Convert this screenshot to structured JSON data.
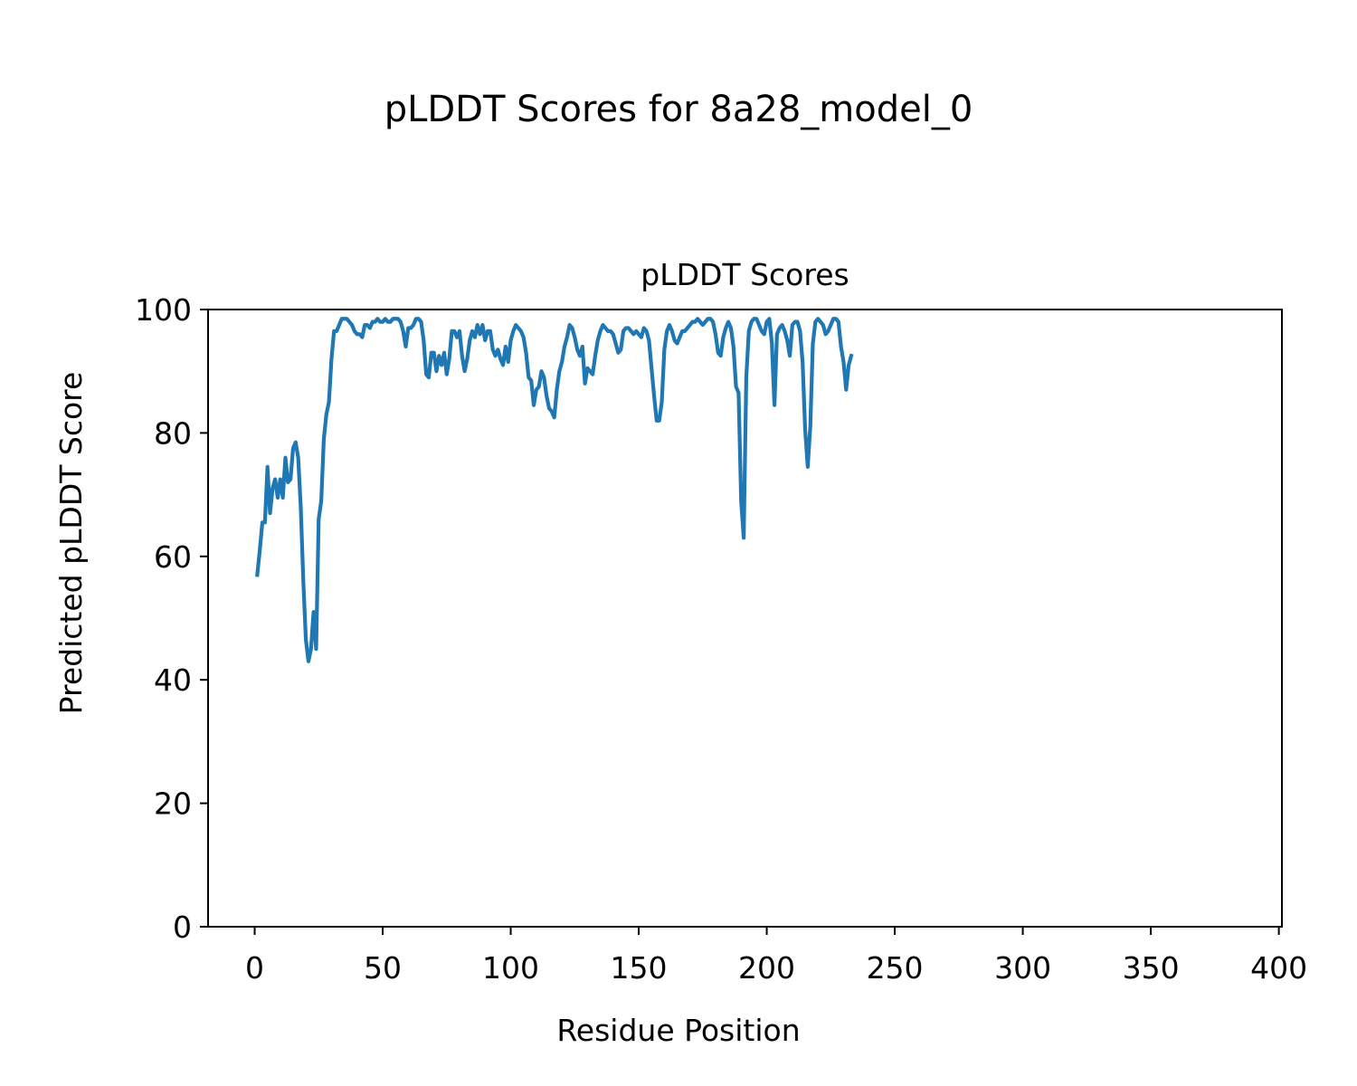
{
  "figure": {
    "suptitle": "pLDDT Scores for 8a28_model_0"
  },
  "chart_data": {
    "type": "line",
    "title": "pLDDT Scores",
    "xlabel": "Residue Position",
    "ylabel": "Predicted pLDDT Score",
    "xlim": [
      -18.2,
      401.2
    ],
    "ylim": [
      0,
      100
    ],
    "xticks": [
      0,
      50,
      100,
      150,
      200,
      250,
      300,
      350,
      400
    ],
    "yticks": [
      0,
      20,
      40,
      60,
      80,
      100
    ],
    "grid": false,
    "line_color": "#1f77b4",
    "series": [
      {
        "x_start": 1,
        "values": [
          57,
          61,
          65.5,
          65.5,
          74.5,
          67,
          71,
          72.5,
          69.5,
          72.5,
          69.5,
          76,
          72,
          72.5,
          77.5,
          78.5,
          76,
          68,
          56,
          46.5,
          43,
          45,
          51,
          45,
          66,
          69,
          79,
          83,
          85,
          92,
          96.5,
          96.5,
          97.5,
          98.5,
          98.5,
          98.5,
          98,
          97.5,
          96.5,
          96,
          96,
          95.5,
          97.5,
          97.5,
          97,
          98,
          98,
          98.5,
          98,
          98,
          98.5,
          98,
          98,
          98.5,
          98.5,
          98.5,
          98,
          96.5,
          94,
          97,
          97,
          97.5,
          98.5,
          98.5,
          98,
          95,
          89.5,
          89,
          93,
          93,
          90,
          92.5,
          91,
          93,
          89.5,
          92,
          96.5,
          96.5,
          95.5,
          96.5,
          92.5,
          90,
          92,
          95,
          96.5,
          95.5,
          97.5,
          96,
          97.5,
          95,
          96.5,
          96.5,
          93.5,
          92.5,
          93.5,
          92,
          91,
          94,
          91.5,
          95,
          96.5,
          97.5,
          97,
          96.5,
          95.5,
          93,
          89,
          88.5,
          84.5,
          87,
          87.5,
          90,
          89,
          86,
          84,
          83.5,
          82.5,
          87,
          90,
          91.5,
          94,
          95.5,
          97.5,
          97,
          95.5,
          93.5,
          92.5,
          94,
          88,
          90.5,
          90,
          89.5,
          92.5,
          95,
          96.5,
          97.5,
          97,
          96.5,
          96.5,
          96,
          94.5,
          93,
          93.5,
          96.5,
          97,
          97,
          96.5,
          96,
          96.5,
          96,
          95.5,
          97,
          96.5,
          95,
          90.5,
          86,
          82,
          82,
          85,
          93.5,
          96.5,
          97.5,
          96.5,
          95,
          94.5,
          95.5,
          96.5,
          96.5,
          97,
          97.5,
          98,
          98,
          98.5,
          98,
          97.5,
          98,
          98.5,
          98.5,
          98,
          96,
          93,
          92.5,
          95.5,
          97,
          98,
          97,
          94,
          87.5,
          86.5,
          69,
          63,
          89,
          96.5,
          98,
          98.5,
          98.5,
          97.5,
          96.5,
          96,
          98,
          98.5,
          94.5,
          84.5,
          96,
          97,
          97.5,
          96.5,
          95,
          92.5,
          97.5,
          98,
          98,
          96.5,
          91.5,
          80.5,
          74.5,
          81,
          94.5,
          98,
          98.5,
          98,
          97.5,
          96,
          96.5,
          97.5,
          98.5,
          98.5,
          98,
          94,
          91.5,
          87,
          91,
          92.5
        ]
      }
    ]
  }
}
